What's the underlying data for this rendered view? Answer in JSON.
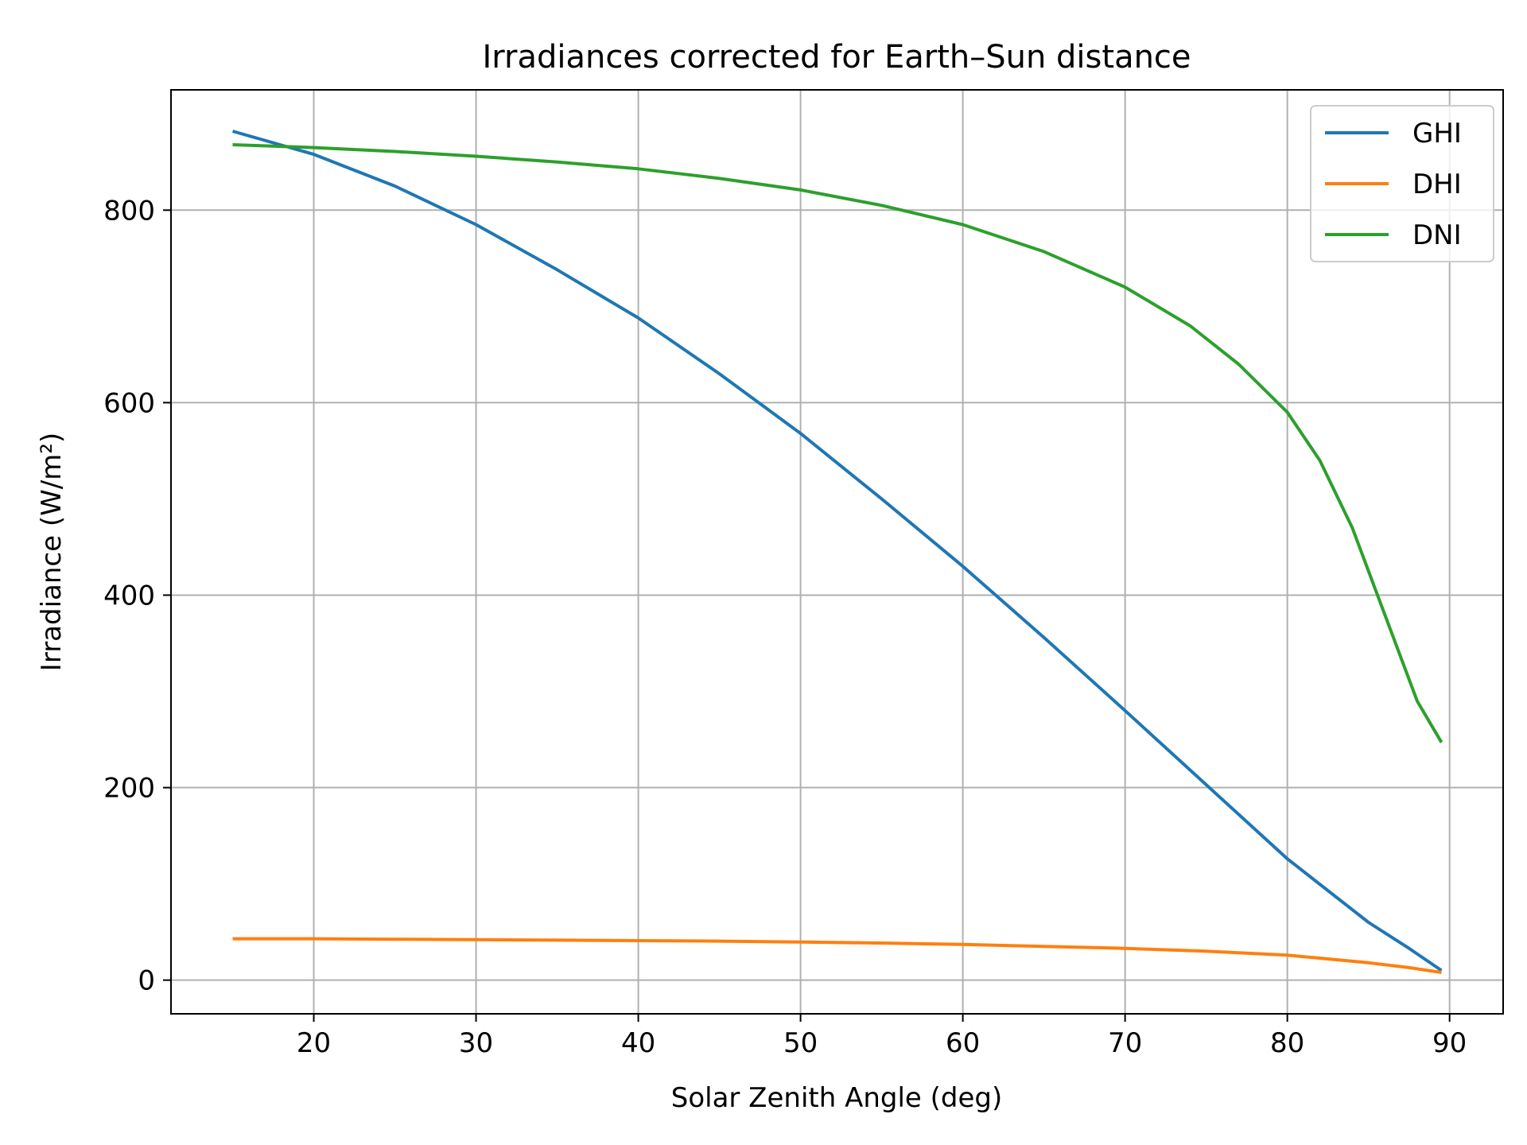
{
  "chart_data": {
    "type": "line",
    "title": "Irradiances corrected for Earth–Sun distance",
    "xlabel": "Solar Zenith Angle (deg)",
    "ylabel": "Irradiance (W/m²)",
    "xlim": [
      11.2,
      93.3
    ],
    "ylim": [
      -35,
      925
    ],
    "xticks": [
      20,
      30,
      40,
      50,
      60,
      70,
      80,
      90
    ],
    "yticks": [
      0,
      200,
      400,
      600,
      800
    ],
    "grid": true,
    "legend_position": "top-right",
    "series": [
      {
        "name": "GHI",
        "color": "#1f77b4",
        "x": [
          15,
          20,
          25,
          30,
          35,
          40,
          45,
          50,
          55,
          60,
          65,
          70,
          75,
          80,
          85,
          87.5,
          89.5
        ],
        "y": [
          882,
          858,
          825,
          785,
          738,
          688,
          630,
          568,
          500,
          430,
          356,
          280,
          203,
          126,
          60,
          33,
          10
        ]
      },
      {
        "name": "DHI",
        "color": "#ff7f0e",
        "x": [
          15,
          20,
          25,
          30,
          35,
          40,
          45,
          50,
          55,
          60,
          65,
          70,
          75,
          80,
          85,
          87.5,
          89.5
        ],
        "y": [
          43,
          43,
          42.5,
          42,
          41.5,
          41,
          40.5,
          39.5,
          38.5,
          37,
          35,
          33,
          30,
          26,
          18,
          13,
          8
        ]
      },
      {
        "name": "DNI",
        "color": "#2ca02c",
        "x": [
          15,
          20,
          25,
          30,
          35,
          40,
          45,
          50,
          55,
          60,
          65,
          70,
          74,
          77,
          80,
          82,
          84,
          86,
          88,
          89.5
        ],
        "y": [
          868,
          865,
          861,
          856,
          850,
          843,
          833,
          821,
          805,
          785,
          757,
          720,
          680,
          640,
          590,
          540,
          470,
          380,
          290,
          247
        ]
      }
    ]
  }
}
